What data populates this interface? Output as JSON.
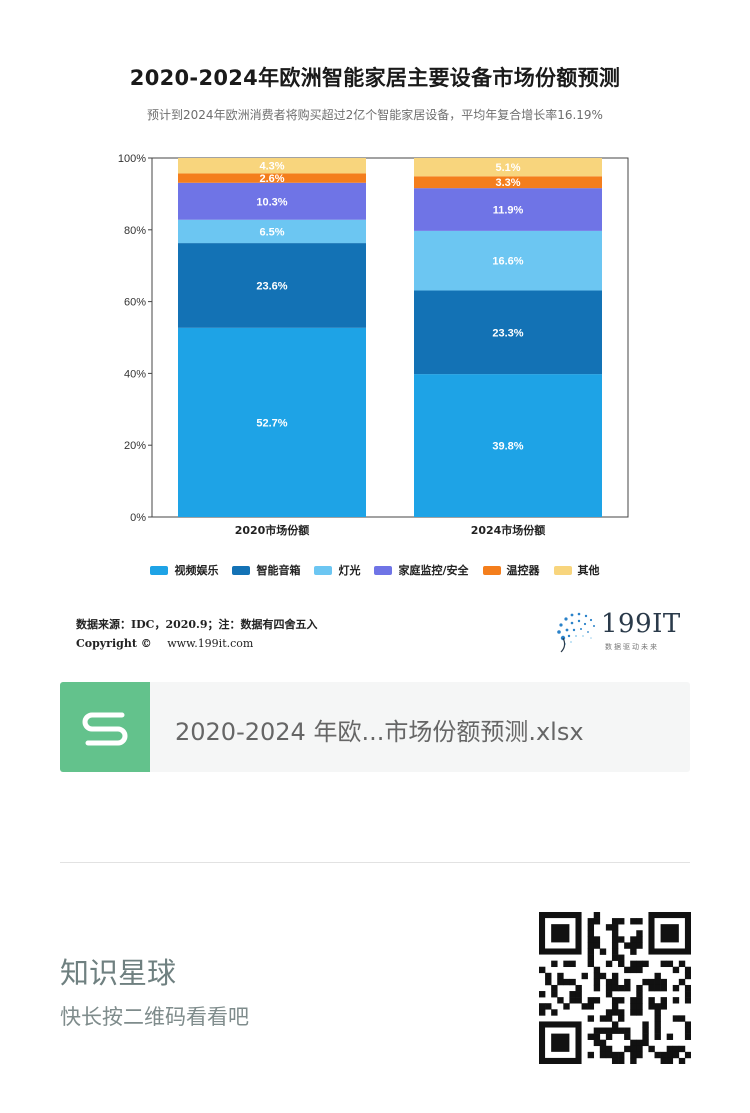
{
  "header": {
    "title": "2020-2024年欧洲智能家居主要设备市场份额预测",
    "subtitle": "预计到2024年欧洲消费者将购买超过2亿个智能家居设备，平均年复合增长率16.19%"
  },
  "chart_data": {
    "type": "bar",
    "stacked": true,
    "categories": [
      "2020市场份额",
      "2024市场份额"
    ],
    "series": [
      {
        "name": "视频娱乐",
        "color": "#1ea3e6",
        "values": [
          52.7,
          39.8
        ]
      },
      {
        "name": "智能音箱",
        "color": "#1372b5",
        "values": [
          23.6,
          23.3
        ]
      },
      {
        "name": "灯光",
        "color": "#6cc6f2",
        "values": [
          6.5,
          16.6
        ]
      },
      {
        "name": "家庭监控/安全",
        "color": "#6f74e6",
        "values": [
          10.3,
          11.9
        ]
      },
      {
        "name": "温控器",
        "color": "#f47e1c",
        "values": [
          2.6,
          3.3
        ]
      },
      {
        "name": "其他",
        "color": "#f8d57d",
        "values": [
          4.3,
          5.1
        ]
      }
    ],
    "value_labels": [
      [
        "52.7%",
        "23.6%",
        "6.5%",
        "10.3%",
        "2.6%",
        "4.3%"
      ],
      [
        "39.8%",
        "23.3%",
        "16.6%",
        "11.9%",
        "3.3%",
        "5.1%"
      ]
    ],
    "yticks": [
      "0%",
      "20%",
      "40%",
      "60%",
      "80%",
      "100%"
    ],
    "ylim": [
      0,
      100
    ],
    "legend_position": "bottom"
  },
  "footer": {
    "source": "数据来源：IDC，2020.9；注：数据有四舍五入",
    "copyright_label": "Copyright ©",
    "copyright_url": "www.199it.com",
    "brand_name": "199IT",
    "brand_slogan": "数据驱动未来"
  },
  "file_card": {
    "icon": "spreadsheet-s-icon",
    "file_name": "2020-2024 年欧...市场份额预测.xlsx"
  },
  "promo": {
    "title": "知识星球",
    "subtitle": "快长按二维码看看吧",
    "qr_icon": "qr-code-icon"
  }
}
